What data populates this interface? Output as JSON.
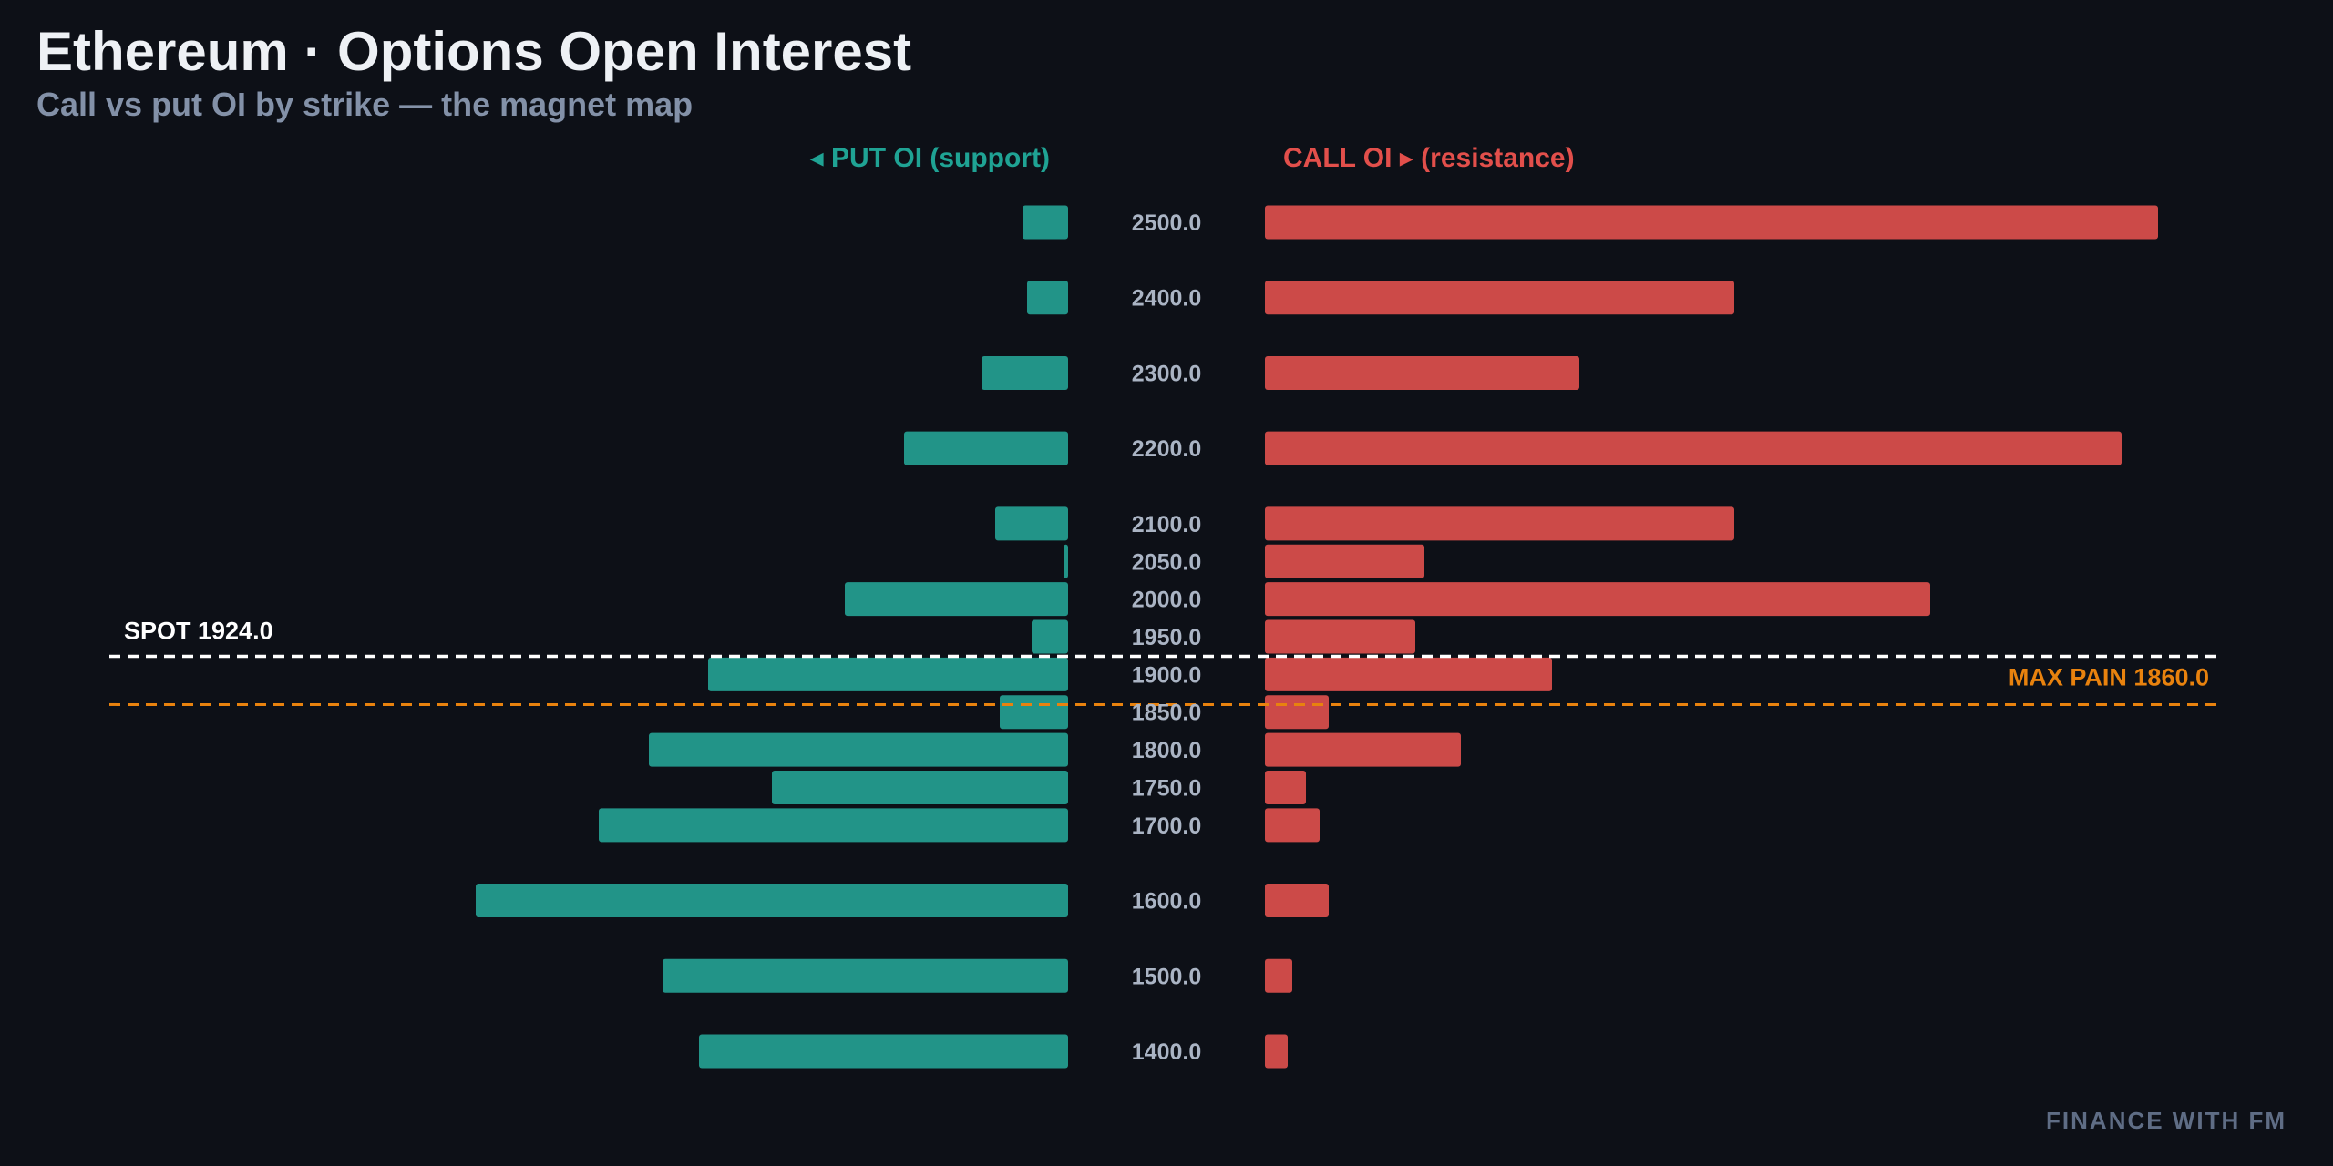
{
  "title": "Ethereum · Options Open Interest",
  "subtitle": "Call vs put OI by strike — the magnet map",
  "put_header": "◂ PUT OI (support)",
  "call_header": "CALL OI ▸ (resistance)",
  "watermark": "FINANCE WITH FM",
  "colors": {
    "put": "#229488",
    "call": "#cc4a48",
    "spot": "#ffffff",
    "max_pain": "#e8820e",
    "strike_label": "#aab4c4",
    "background": "#0d1017"
  },
  "chart_data": {
    "type": "bar",
    "orientation": "horizontal-diverging",
    "y_axis": "strike",
    "strikes": [
      2500,
      2400,
      2300,
      2200,
      2100,
      2050,
      2000,
      1950,
      1900,
      1850,
      1800,
      1750,
      1700,
      1600,
      1500,
      1400
    ],
    "strike_labels": [
      "2500.0",
      "2400.0",
      "2300.0",
      "2200.0",
      "2100.0",
      "2050.0",
      "2000.0",
      "1950.0",
      "1900.0",
      "1850.0",
      "1800.0",
      "1750.0",
      "1700.0",
      "1600.0",
      "1500.0",
      "1400.0"
    ],
    "series": [
      {
        "name": "PUT OI",
        "side": "left",
        "values": [
          5,
          4.5,
          9.5,
          18,
          8,
          0.5,
          24.5,
          4,
          39.5,
          7.5,
          46,
          32.5,
          51.5,
          65,
          44.5,
          40.5
        ]
      },
      {
        "name": "CALL OI",
        "side": "right",
        "values": [
          98,
          51.5,
          34.5,
          94,
          51.5,
          17.5,
          73,
          16.5,
          31.5,
          7,
          21.5,
          4.5,
          6,
          7,
          3,
          2.5
        ]
      }
    ],
    "value_range": [
      0,
      100
    ],
    "reference_lines": [
      {
        "label": "SPOT 1924.0",
        "value": 1924.0,
        "style": "dashed",
        "color": "#ffffff",
        "label_position": "left"
      },
      {
        "label": "MAX PAIN 1860.0",
        "value": 1860.0,
        "style": "dashed",
        "color": "#e8820e",
        "label_position": "right"
      }
    ],
    "grid": false,
    "legend": "top"
  }
}
